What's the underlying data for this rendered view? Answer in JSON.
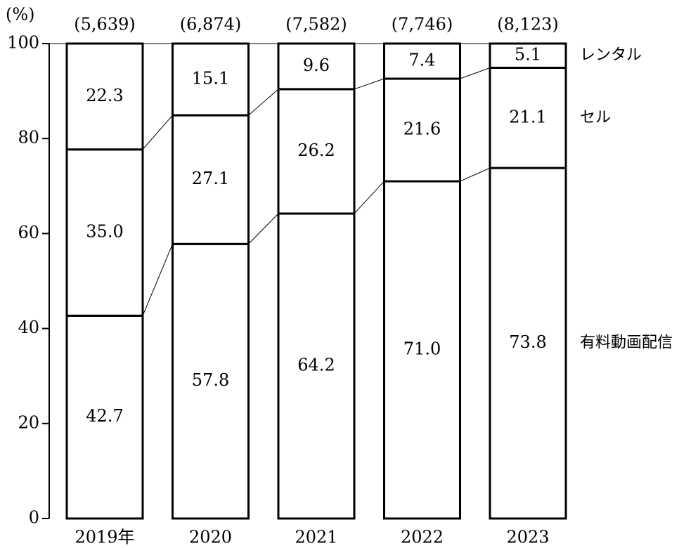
{
  "chart_data": {
    "type": "stacked_bar",
    "y_label": "(%)",
    "categories": [
      "2019年",
      "2020",
      "2021",
      "2022",
      "2023"
    ],
    "totals": {
      "values": [
        5639,
        6874,
        7582,
        7746,
        8123
      ],
      "value_labels": [
        "(5,639)",
        "(6,874)",
        "(7,582)",
        "(7,746)",
        "(8,123)"
      ]
    },
    "series": [
      {
        "name": "有料動画配信",
        "color": "#ffffff",
        "values": [
          42.7,
          57.8,
          64.2,
          71.0,
          73.8
        ],
        "value_labels": [
          "42.7",
          "57.8",
          "64.2",
          "71.0",
          "73.8"
        ]
      },
      {
        "name": "セル",
        "color": "#ffffff",
        "values": [
          35.0,
          27.1,
          26.2,
          21.6,
          21.1
        ],
        "value_labels": [
          "35.0",
          "27.1",
          "26.2",
          "21.6",
          "21.1"
        ]
      },
      {
        "name": "レンタル",
        "color": "#ffffff",
        "values": [
          22.3,
          15.1,
          9.6,
          7.4,
          5.1
        ],
        "value_labels": [
          "22.3",
          "15.1",
          "9.6",
          "7.4",
          "5.1"
        ]
      }
    ],
    "ylim": [
      0,
      100
    ],
    "yticks": [
      0,
      20,
      40,
      60,
      80,
      100
    ]
  }
}
